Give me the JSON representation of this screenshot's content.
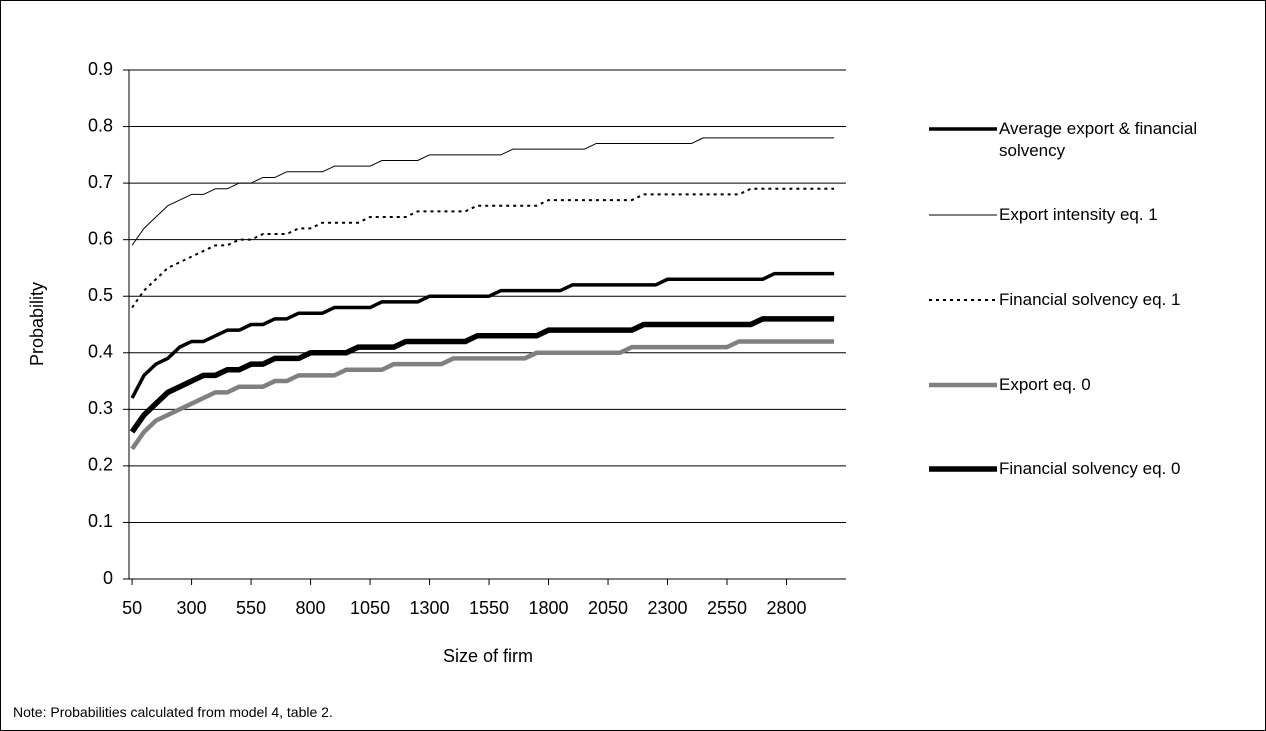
{
  "chart_data": {
    "type": "line",
    "y_label": "Probability",
    "x_label": "Size of firm",
    "note": "Note: Probabilities calculated from model 4, table 2.",
    "x": [
      50,
      100,
      150,
      200,
      250,
      300,
      350,
      400,
      450,
      500,
      550,
      600,
      650,
      700,
      750,
      800,
      850,
      900,
      950,
      1000,
      1050,
      1100,
      1150,
      1200,
      1250,
      1300,
      1350,
      1400,
      1450,
      1500,
      1550,
      1600,
      1650,
      1700,
      1750,
      1800,
      1850,
      1900,
      1950,
      2000,
      2050,
      2100,
      2150,
      2200,
      2250,
      2300,
      2350,
      2400,
      2450,
      2500,
      2550,
      2600,
      2650,
      2700,
      2750,
      2800,
      2850,
      2900,
      2950,
      3000
    ],
    "xlim": [
      37,
      3050
    ],
    "xticks": [
      50,
      300,
      550,
      800,
      1050,
      1300,
      1550,
      1800,
      2050,
      2300,
      2550,
      2800
    ],
    "ylim": [
      0,
      0.9
    ],
    "yticks": [
      0,
      0.1,
      0.2,
      0.3,
      0.4,
      0.5,
      0.6,
      0.7,
      0.8,
      0.9
    ],
    "grid": true,
    "series": [
      {
        "name": "Average export & financial solvency",
        "color": "#000000",
        "values": [
          0.32,
          0.36,
          0.38,
          0.39,
          0.41,
          0.42,
          0.42,
          0.43,
          0.44,
          0.44,
          0.45,
          0.45,
          0.46,
          0.46,
          0.47,
          0.47,
          0.47,
          0.48,
          0.48,
          0.48,
          0.48,
          0.49,
          0.49,
          0.49,
          0.49,
          0.5,
          0.5,
          0.5,
          0.5,
          0.5,
          0.5,
          0.51,
          0.51,
          0.51,
          0.51,
          0.51,
          0.51,
          0.52,
          0.52,
          0.52,
          0.52,
          0.52,
          0.52,
          0.52,
          0.52,
          0.53,
          0.53,
          0.53,
          0.53,
          0.53,
          0.53,
          0.53,
          0.53,
          0.53,
          0.54,
          0.54,
          0.54,
          0.54,
          0.54,
          0.54
        ]
      },
      {
        "name": "Export intensity eq. 1",
        "color": "#000000",
        "values": [
          0.59,
          0.62,
          0.64,
          0.66,
          0.67,
          0.68,
          0.68,
          0.69,
          0.69,
          0.7,
          0.7,
          0.71,
          0.71,
          0.72,
          0.72,
          0.72,
          0.72,
          0.73,
          0.73,
          0.73,
          0.73,
          0.74,
          0.74,
          0.74,
          0.74,
          0.75,
          0.75,
          0.75,
          0.75,
          0.75,
          0.75,
          0.75,
          0.76,
          0.76,
          0.76,
          0.76,
          0.76,
          0.76,
          0.76,
          0.77,
          0.77,
          0.77,
          0.77,
          0.77,
          0.77,
          0.77,
          0.77,
          0.77,
          0.78,
          0.78,
          0.78,
          0.78,
          0.78,
          0.78,
          0.78,
          0.78,
          0.78,
          0.78,
          0.78,
          0.78
        ]
      },
      {
        "name": "Financial solvency eq. 1",
        "color": "#000000",
        "values": [
          0.48,
          0.51,
          0.53,
          0.55,
          0.56,
          0.57,
          0.58,
          0.59,
          0.59,
          0.6,
          0.6,
          0.61,
          0.61,
          0.61,
          0.62,
          0.62,
          0.63,
          0.63,
          0.63,
          0.63,
          0.64,
          0.64,
          0.64,
          0.64,
          0.65,
          0.65,
          0.65,
          0.65,
          0.65,
          0.66,
          0.66,
          0.66,
          0.66,
          0.66,
          0.66,
          0.67,
          0.67,
          0.67,
          0.67,
          0.67,
          0.67,
          0.67,
          0.67,
          0.68,
          0.68,
          0.68,
          0.68,
          0.68,
          0.68,
          0.68,
          0.68,
          0.68,
          0.69,
          0.69,
          0.69,
          0.69,
          0.69,
          0.69,
          0.69,
          0.69
        ]
      },
      {
        "name": "Export eq. 0",
        "color": "#808080",
        "values": [
          0.23,
          0.26,
          0.28,
          0.29,
          0.3,
          0.31,
          0.32,
          0.33,
          0.33,
          0.34,
          0.34,
          0.34,
          0.35,
          0.35,
          0.36,
          0.36,
          0.36,
          0.36,
          0.37,
          0.37,
          0.37,
          0.37,
          0.38,
          0.38,
          0.38,
          0.38,
          0.38,
          0.39,
          0.39,
          0.39,
          0.39,
          0.39,
          0.39,
          0.39,
          0.4,
          0.4,
          0.4,
          0.4,
          0.4,
          0.4,
          0.4,
          0.4,
          0.41,
          0.41,
          0.41,
          0.41,
          0.41,
          0.41,
          0.41,
          0.41,
          0.41,
          0.42,
          0.42,
          0.42,
          0.42,
          0.42,
          0.42,
          0.42,
          0.42,
          0.42
        ]
      },
      {
        "name": "Financial solvency eq. 0",
        "color": "#000000",
        "values": [
          0.26,
          0.29,
          0.31,
          0.33,
          0.34,
          0.35,
          0.36,
          0.36,
          0.37,
          0.37,
          0.38,
          0.38,
          0.39,
          0.39,
          0.39,
          0.4,
          0.4,
          0.4,
          0.4,
          0.41,
          0.41,
          0.41,
          0.41,
          0.42,
          0.42,
          0.42,
          0.42,
          0.42,
          0.42,
          0.43,
          0.43,
          0.43,
          0.43,
          0.43,
          0.43,
          0.44,
          0.44,
          0.44,
          0.44,
          0.44,
          0.44,
          0.44,
          0.44,
          0.45,
          0.45,
          0.45,
          0.45,
          0.45,
          0.45,
          0.45,
          0.45,
          0.45,
          0.45,
          0.46,
          0.46,
          0.46,
          0.46,
          0.46,
          0.46,
          0.46
        ]
      }
    ]
  }
}
